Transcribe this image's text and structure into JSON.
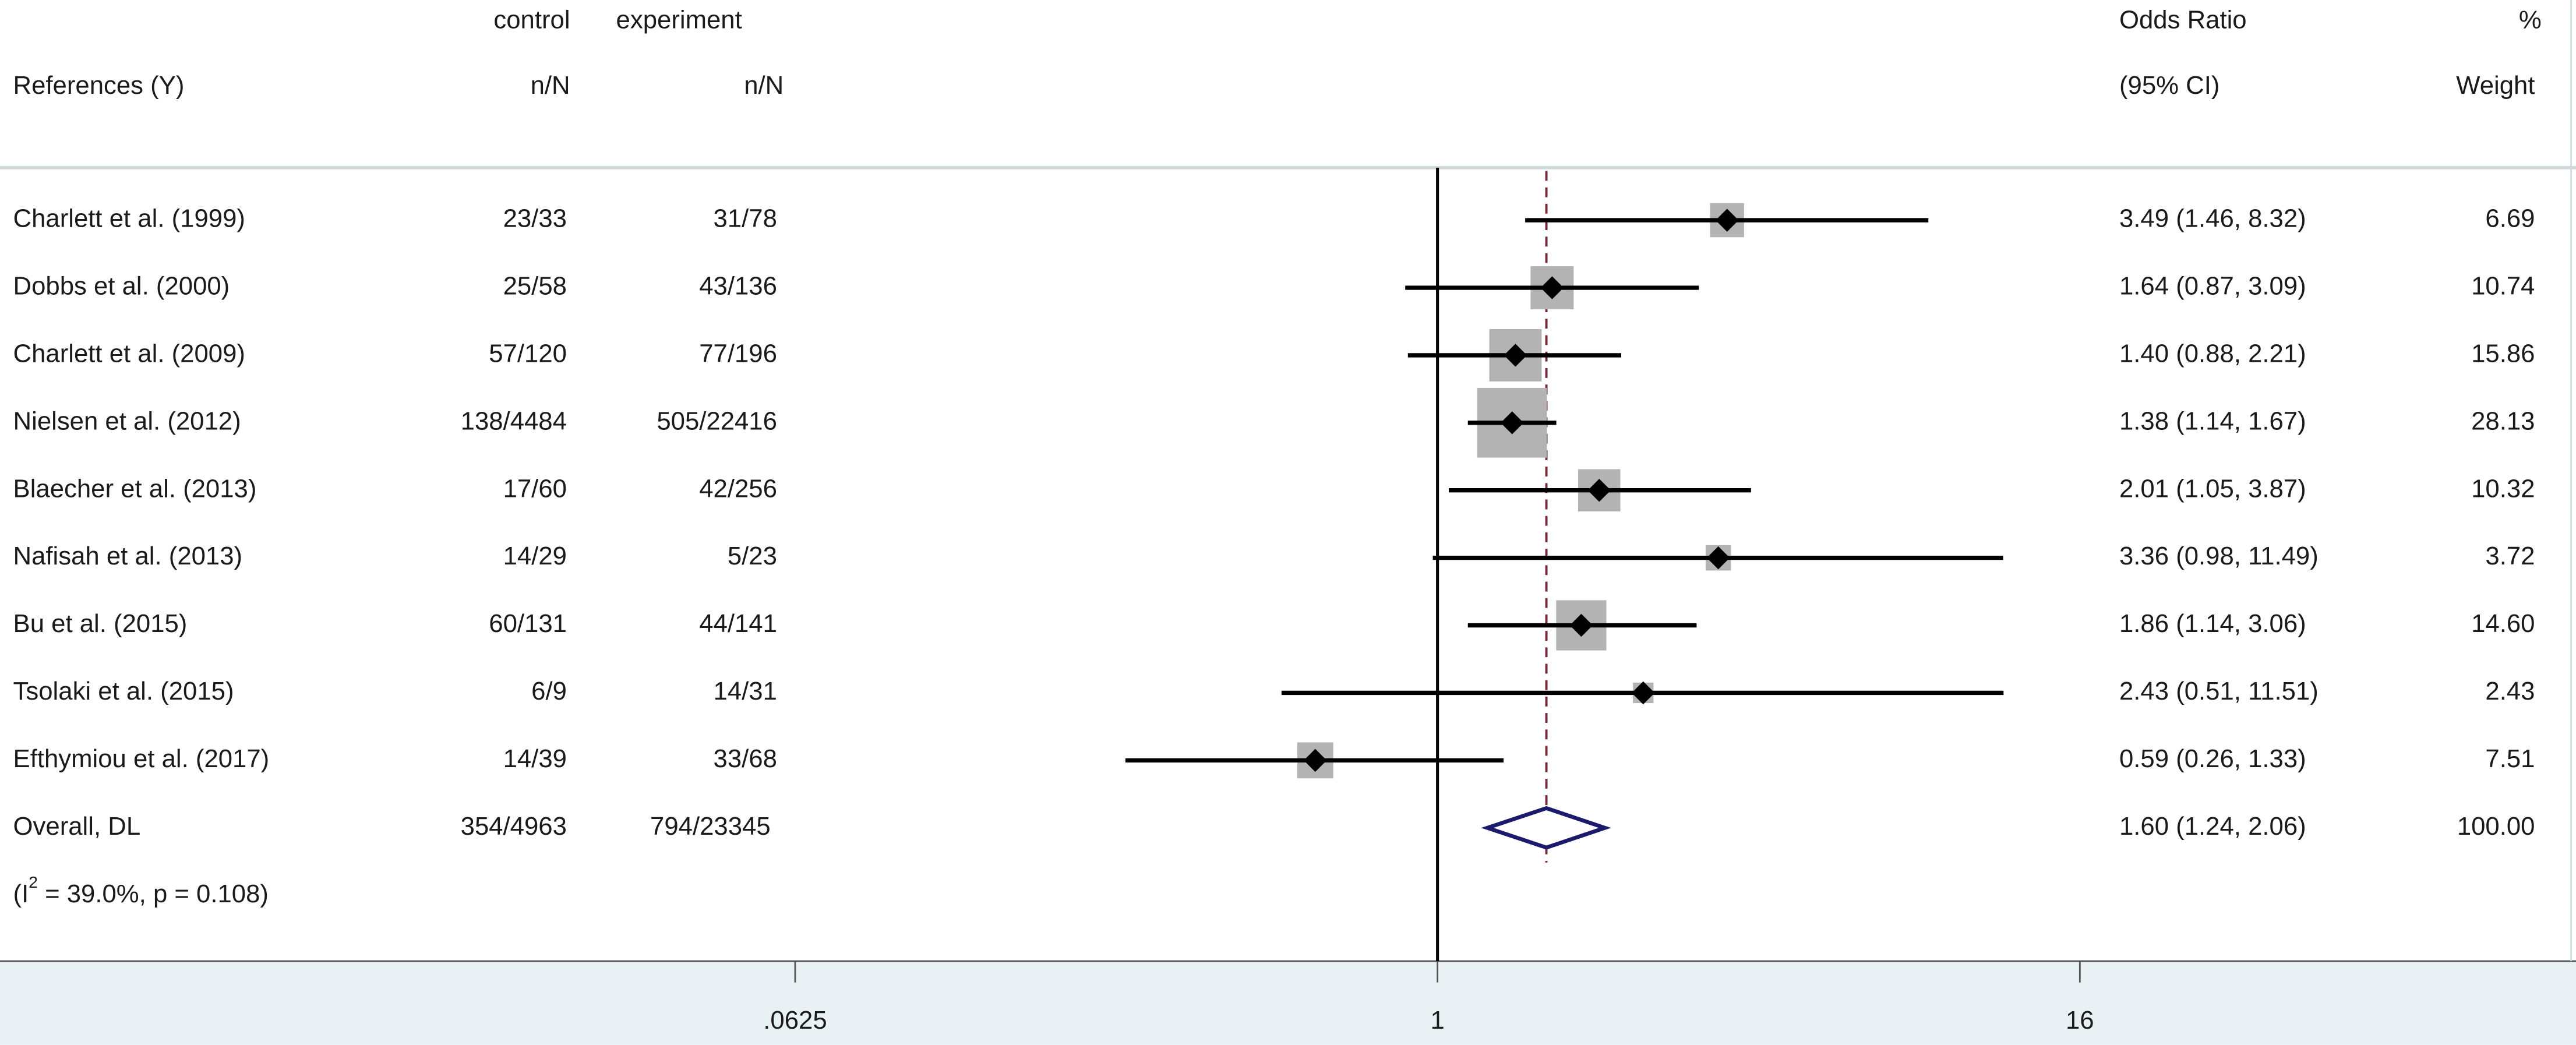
{
  "chart_data": {
    "type": "forest",
    "header": {
      "control": "control",
      "experiment": "experiment",
      "odds_ratio": "Odds Ratio",
      "percent": "%",
      "references": "References (Y)",
      "control_n": "n/N",
      "experiment_n": "n/N",
      "ci": "(95% CI)",
      "weight": "Weight"
    },
    "references": [
      "Charlett et al. (1999)",
      "Dobbs et al. (2000)",
      "Charlett et al. (2009)",
      "Nielsen et al. (2012)",
      "Blaecher et al. (2013)",
      "Nafisah et al. (2013)",
      "Bu et al. (2015)",
      "Tsolaki et al. (2015)",
      "Efthymiou et al. (2017)"
    ],
    "control": [
      "23/33",
      "25/58",
      "57/120",
      "138/4484",
      "17/60",
      "14/29",
      "60/131",
      "6/9",
      "14/39"
    ],
    "experiment": [
      "31/78",
      "43/136",
      "77/196",
      "505/22416",
      "42/256",
      "5/23",
      "44/141",
      "14/31",
      "33/68"
    ],
    "or": [
      3.49,
      1.64,
      1.4,
      1.38,
      2.01,
      3.36,
      1.86,
      2.43,
      0.59
    ],
    "lower": [
      1.46,
      0.87,
      0.88,
      1.14,
      1.05,
      0.98,
      1.14,
      0.51,
      0.26
    ],
    "upper": [
      8.32,
      3.09,
      2.21,
      1.67,
      3.87,
      11.49,
      3.06,
      11.51,
      1.33
    ],
    "ci_labels": [
      "3.49 (1.46, 8.32)",
      "1.64 (0.87, 3.09)",
      "1.40 (0.88, 2.21)",
      "1.38 (1.14, 1.67)",
      "2.01 (1.05, 3.87)",
      "3.36 (0.98, 11.49)",
      "1.86 (1.14, 3.06)",
      "2.43 (0.51, 11.51)",
      "0.59 (0.26, 1.33)"
    ],
    "weights": [
      6.69,
      10.74,
      15.86,
      28.13,
      10.32,
      3.72,
      14.6,
      2.43,
      7.51
    ],
    "weight_labels": [
      "6.69",
      "10.74",
      "15.86",
      "28.13",
      "10.32",
      "3.72",
      "14.60",
      "2.43",
      "7.51"
    ],
    "overall": {
      "name": "Overall, DL",
      "control": "354/4963",
      "experiment": "794/23345",
      "or": 1.6,
      "lower": 1.24,
      "upper": 2.06,
      "ci_label": "1.60 (1.24, 2.06)",
      "weight": 100,
      "weight_label": "100.00"
    },
    "heterogeneity": {
      "prefix": "(I",
      "superscript": "2",
      "suffix": " = 39.0%, p = 0.108)"
    },
    "log_scale": true,
    "xlim": [
      0.0625,
      16
    ],
    "xticks": [
      {
        "value": 0.0625,
        "label": ".0625"
      },
      1,
      16
    ],
    "box_color": "#b3b3b3",
    "line_color": "#000000",
    "diamond_color": "#1b1b6b",
    "reference_line_color": "#7a2a3a"
  }
}
